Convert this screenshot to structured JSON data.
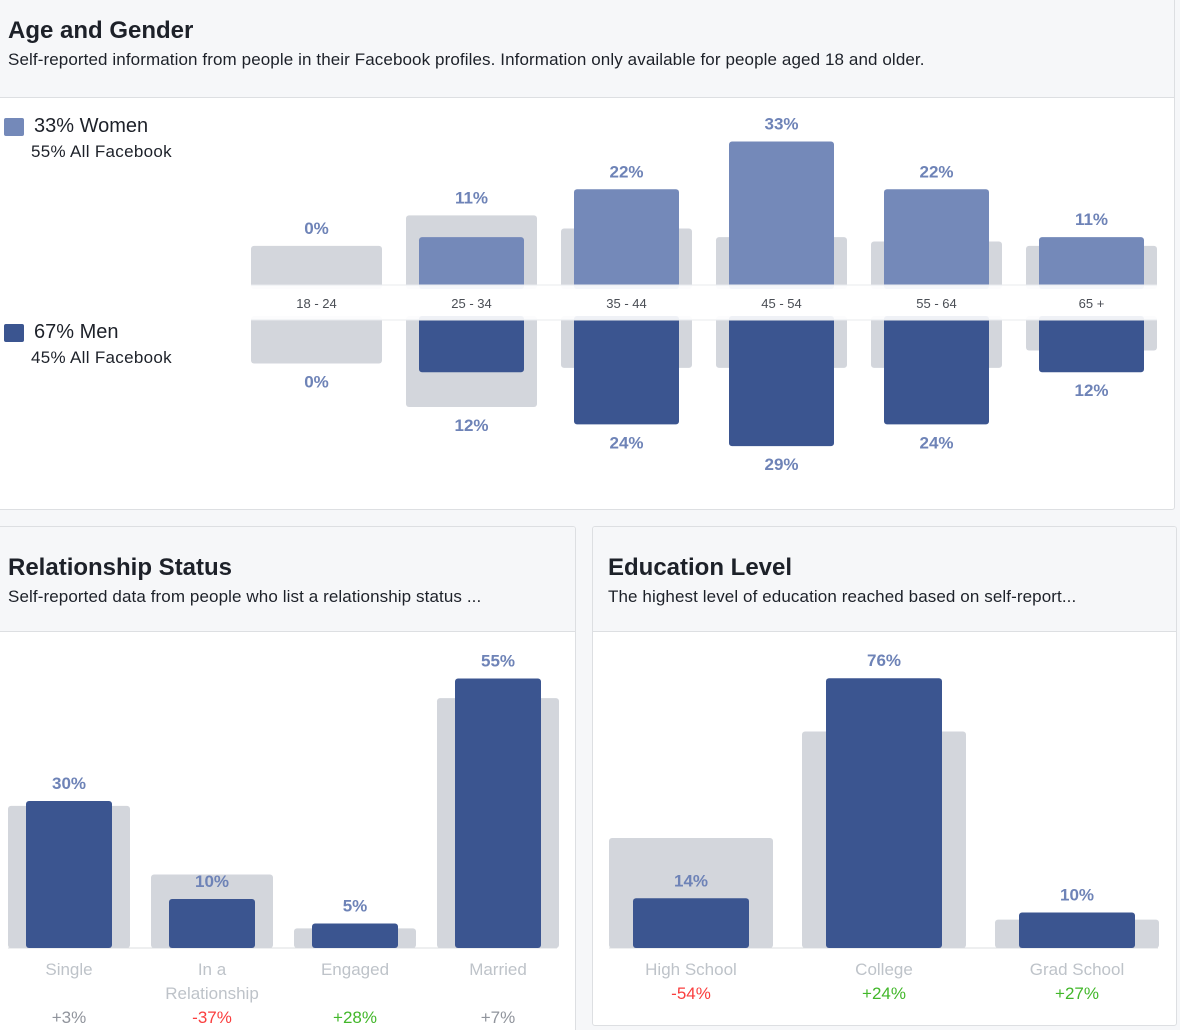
{
  "age_gender": {
    "title": "Age and Gender",
    "subtitle": "Self-reported information from people in their Facebook profiles. Information only available for people aged 18 and older.",
    "legend": {
      "women": {
        "label": "33% Women",
        "sub": "55% All Facebook"
      },
      "men": {
        "label": "67% Men",
        "sub": "45% All Facebook"
      }
    }
  },
  "relationship": {
    "title": "Relationship Status",
    "subtitle": "Self-reported data from people who list a relationship status ..."
  },
  "education": {
    "title": "Education Level",
    "subtitle": "The highest level of education reached based on self-report..."
  },
  "colors": {
    "women": "#7489b9",
    "men": "#3b5590",
    "baseline": "#d3d6dc",
    "value_label": "#6e83b7",
    "positive": "#42b72a",
    "negative": "#fa3e3e",
    "neutral": "#90949c"
  },
  "chart_data": [
    {
      "id": "age_gender",
      "type": "bar",
      "categories": [
        "18 - 24",
        "25 - 34",
        "35 - 44",
        "45 - 54",
        "55 - 64",
        "65 +"
      ],
      "series": [
        {
          "name": "33% Women",
          "values": [
            0,
            11,
            22,
            33,
            22,
            11
          ],
          "labels": [
            "0%",
            "11%",
            "22%",
            "33%",
            "22%",
            "11%"
          ]
        },
        {
          "name": "67% Men",
          "values": [
            0,
            12,
            24,
            29,
            24,
            12
          ],
          "labels": [
            "0%",
            "12%",
            "24%",
            "29%",
            "24%",
            "12%"
          ]
        }
      ],
      "baseline_women": [
        9,
        16,
        13,
        11,
        10,
        9
      ],
      "baseline_men": [
        10,
        20,
        11,
        11,
        11,
        7
      ]
    },
    {
      "id": "relationship",
      "type": "bar",
      "categories": [
        "Single",
        "In a Relationship",
        "Engaged",
        "Married"
      ],
      "category_lines": [
        [
          "Single"
        ],
        [
          "In a",
          "Relationship"
        ],
        [
          "Engaged"
        ],
        [
          "Married"
        ]
      ],
      "values": [
        30,
        10,
        5,
        55
      ],
      "labels": [
        "30%",
        "10%",
        "5%",
        "55%"
      ],
      "baseline": [
        29,
        15,
        4,
        51
      ],
      "diffs": [
        "+3%",
        "-37%",
        "+28%",
        "+7%"
      ],
      "diff_sign": [
        "neutral",
        "negative",
        "positive",
        "neutral"
      ]
    },
    {
      "id": "education",
      "type": "bar",
      "categories": [
        "High School",
        "College",
        "Grad School"
      ],
      "values": [
        14,
        76,
        10
      ],
      "labels": [
        "14%",
        "76%",
        "10%"
      ],
      "baseline": [
        31,
        61,
        8
      ],
      "diffs": [
        "-54%",
        "+24%",
        "+27%"
      ],
      "diff_sign": [
        "negative",
        "positive",
        "positive"
      ]
    }
  ]
}
